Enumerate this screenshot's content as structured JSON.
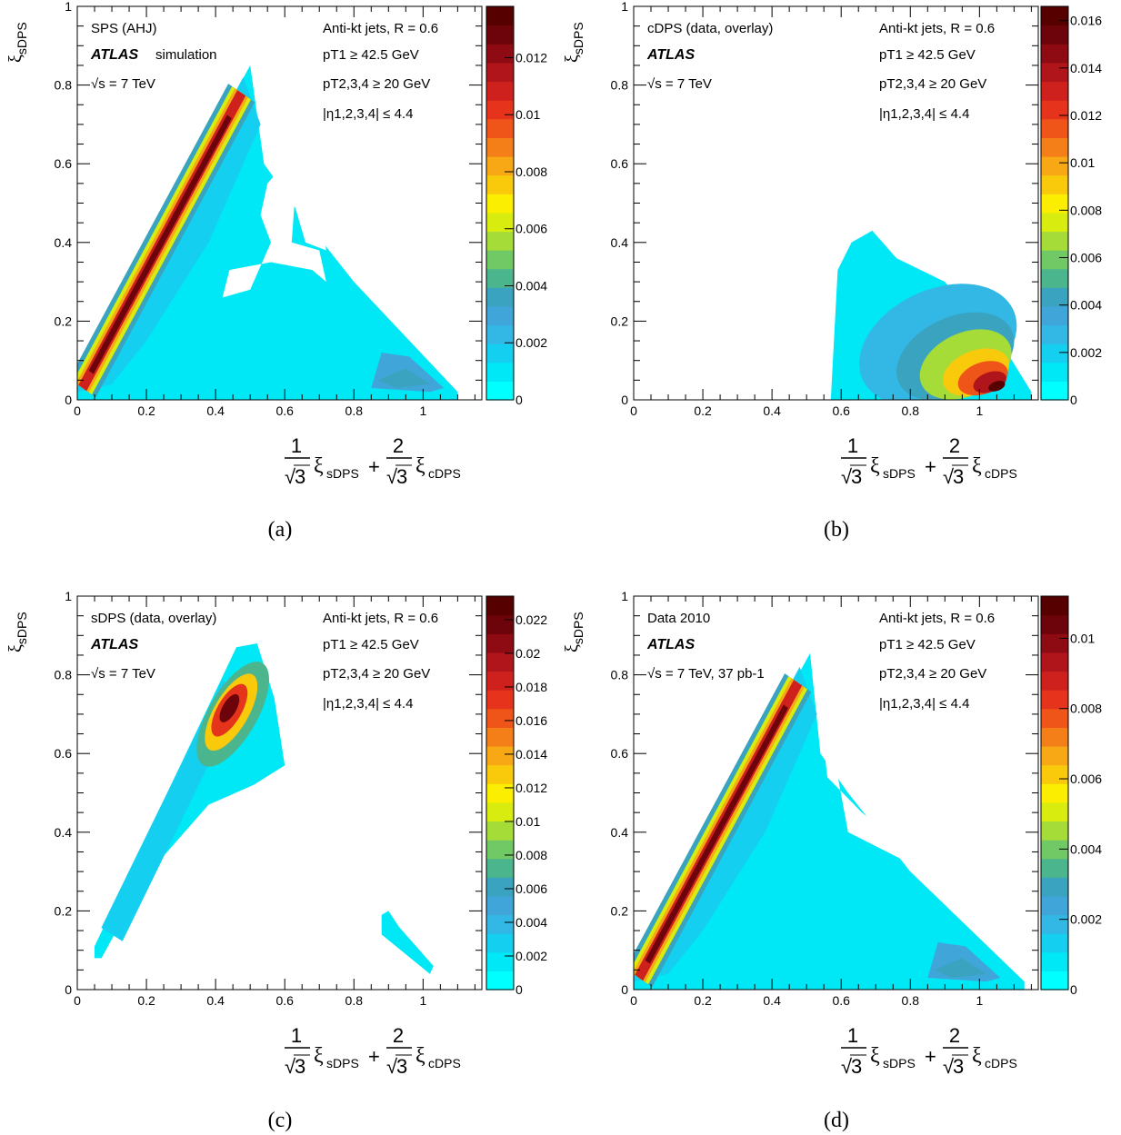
{
  "colors": {
    "heatmap_scale": [
      "#00ffff",
      "#00e8f6",
      "#14cff0",
      "#33b8e6",
      "#40a6d9",
      "#3aa3bf",
      "#4bb58e",
      "#70c964",
      "#a6dc38",
      "#d8ec0f",
      "#fbee00",
      "#f9c90c",
      "#f7a814",
      "#f47e18",
      "#ef5418",
      "#e5341b",
      "#ce211d",
      "#b0151b",
      "#8f0b14",
      "#6d040b",
      "#560000"
    ]
  },
  "chart_data": [
    {
      "type": "heatmap",
      "panel_label": "(a)",
      "ylabel": "ξ_sDPS",
      "xlabel": "(1/√3) ξ_sDPS + (2/√3) ξ_cDPS",
      "xlim": [
        0,
        1.17
      ],
      "ylim": [
        0,
        1
      ],
      "x_ticks": [
        "0",
        "0.2",
        "0.4",
        "0.6",
        "0.8",
        "1"
      ],
      "y_ticks": [
        "0",
        "0.2",
        "0.4",
        "0.6",
        "0.8",
        "1"
      ],
      "colorbar": {
        "range": [
          0,
          0.0138
        ],
        "ticks": [
          "0",
          "0.002",
          "0.004",
          "0.006",
          "0.008",
          "0.01",
          "0.012"
        ]
      },
      "annotations": {
        "sample": "SPS (AHJ)",
        "atlas": "ATLAS",
        "atlas_suffix": "simulation",
        "energy": "√s = 7 TeV",
        "jets": "Anti-kt jets, R = 0.6",
        "pt1": "pT1 ≥ 42.5 GeV",
        "pt234": "pT2,3,4 ≥ 20 GeV",
        "eta": "|η1,2,3,4| ≤ 4.4"
      }
    },
    {
      "type": "heatmap",
      "panel_label": "(b)",
      "ylabel": "ξ_sDPS",
      "xlabel": "(1/√3) ξ_sDPS + (2/√3) ξ_cDPS",
      "xlim": [
        0,
        1.17
      ],
      "ylim": [
        0,
        1
      ],
      "x_ticks": [
        "0",
        "0.2",
        "0.4",
        "0.6",
        "0.8",
        "1"
      ],
      "y_ticks": [
        "0",
        "0.2",
        "0.4",
        "0.6",
        "0.8",
        "1"
      ],
      "colorbar": {
        "range": [
          0,
          0.0166
        ],
        "ticks": [
          "0",
          "0.002",
          "0.004",
          "0.006",
          "0.008",
          "0.01",
          "0.012",
          "0.014",
          "0.016"
        ]
      },
      "annotations": {
        "sample": "cDPS (data, overlay)",
        "atlas": "ATLAS",
        "atlas_suffix": "",
        "energy": "√s = 7 TeV",
        "jets": "Anti-kt jets, R = 0.6",
        "pt1": "pT1 ≥ 42.5 GeV",
        "pt234": "pT2,3,4 ≥ 20 GeV",
        "eta": "|η1,2,3,4| ≤ 4.4"
      }
    },
    {
      "type": "heatmap",
      "panel_label": "(c)",
      "ylabel": "ξ_sDPS",
      "xlabel": "(1/√3) ξ_sDPS + (2/√3) ξ_cDPS",
      "xlim": [
        0,
        1.17
      ],
      "ylim": [
        0,
        1
      ],
      "x_ticks": [
        "0",
        "0.2",
        "0.4",
        "0.6",
        "0.8",
        "1"
      ],
      "y_ticks": [
        "0",
        "0.2",
        "0.4",
        "0.6",
        "0.8",
        "1"
      ],
      "colorbar": {
        "range": [
          0,
          0.0234
        ],
        "ticks": [
          "0",
          "0.002",
          "0.004",
          "0.006",
          "0.008",
          "0.01",
          "0.012",
          "0.014",
          "0.016",
          "0.018",
          "0.02",
          "0.022"
        ]
      },
      "annotations": {
        "sample": "sDPS (data, overlay)",
        "atlas": "ATLAS",
        "atlas_suffix": "",
        "energy": "√s = 7 TeV",
        "jets": "Anti-kt jets, R = 0.6",
        "pt1": "pT1 ≥ 42.5 GeV",
        "pt234": "pT2,3,4 ≥ 20 GeV",
        "eta": "|η1,2,3,4| ≤ 4.4"
      }
    },
    {
      "type": "heatmap",
      "panel_label": "(d)",
      "ylabel": "ξ_sDPS",
      "xlabel": "(1/√3) ξ_sDPS + (2/√3) ξ_cDPS",
      "xlim": [
        0,
        1.17
      ],
      "ylim": [
        0,
        1
      ],
      "x_ticks": [
        "0",
        "0.2",
        "0.4",
        "0.6",
        "0.8",
        "1"
      ],
      "y_ticks": [
        "0",
        "0.2",
        "0.4",
        "0.6",
        "0.8",
        "1"
      ],
      "colorbar": {
        "range": [
          0,
          0.0112
        ],
        "ticks": [
          "0",
          "0.002",
          "0.004",
          "0.006",
          "0.008",
          "0.01"
        ]
      },
      "annotations": {
        "sample": "Data 2010",
        "atlas": "ATLAS",
        "atlas_suffix": "",
        "energy": "√s = 7 TeV, 37 pb-1",
        "jets": "Anti-kt jets, R = 0.6",
        "pt1": "pT1 ≥ 42.5 GeV",
        "pt234": "pT2,3,4 ≥ 20 GeV",
        "eta": "|η1,2,3,4| ≤ 4.4"
      }
    }
  ]
}
